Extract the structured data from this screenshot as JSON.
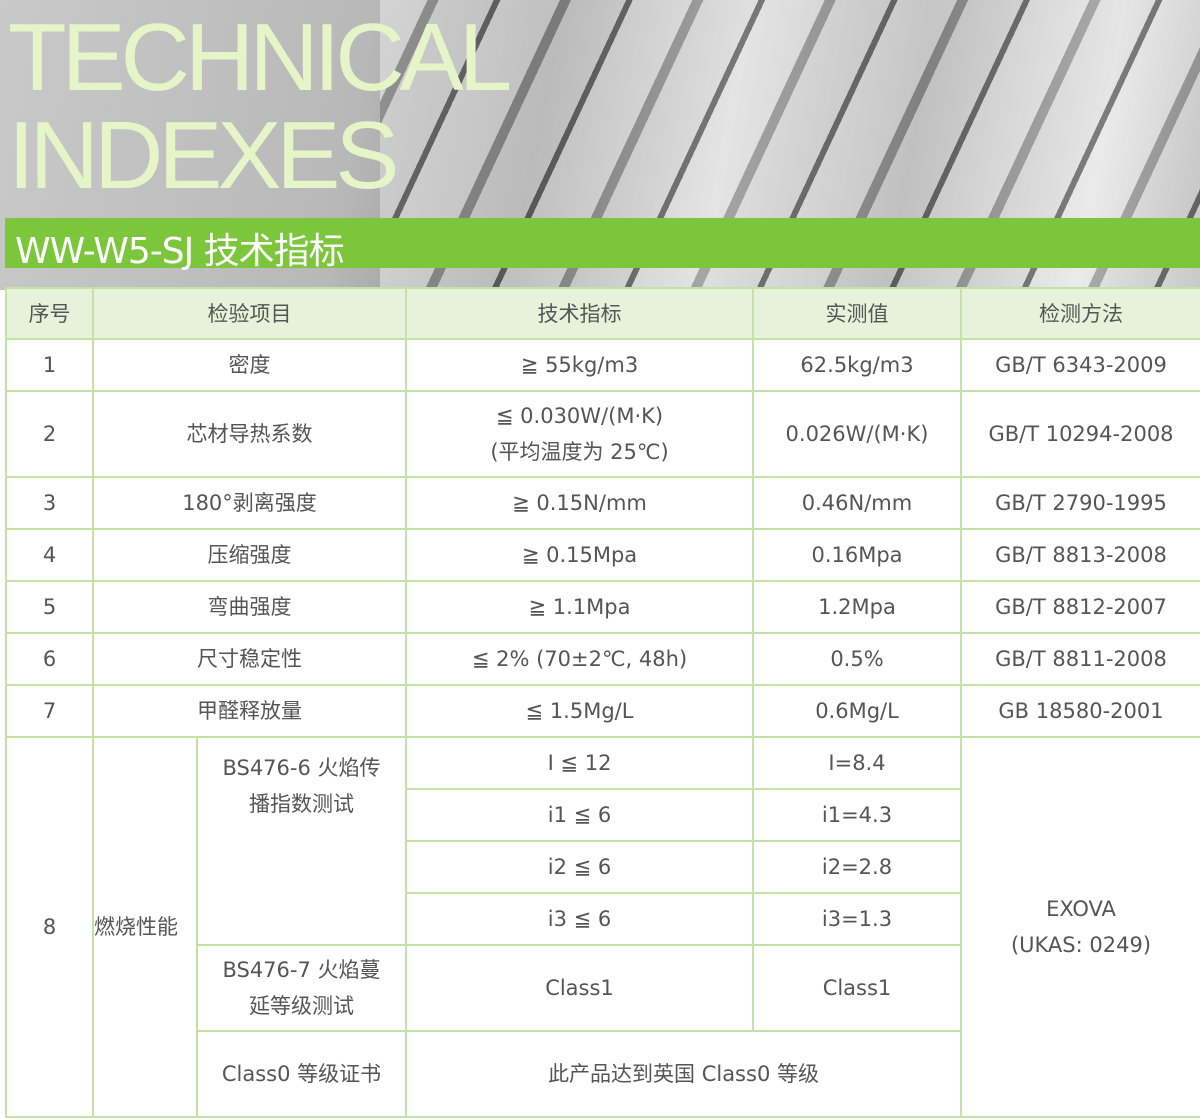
{
  "hero": {
    "title_line1": "TECHNICAL",
    "title_line2": "INDEXES",
    "subtitle": "WW-W5-SJ 技术指标",
    "accent": "#7cc63c"
  },
  "table": {
    "headers": [
      "序号",
      "检验项目",
      "技术指标",
      "实测值",
      "检测方法"
    ],
    "rows": [
      {
        "no": "1",
        "item": "密度",
        "spec": "≧ 55kg/m3",
        "value": "62.5kg/m3",
        "method": "GB/T 6343-2009"
      },
      {
        "no": "2",
        "item": "芯材导热系数",
        "spec": "≦ 0.030W/(M·K)",
        "spec2": "(平均温度为 25℃)",
        "value": "0.026W/(M·K)",
        "method": "GB/T 10294-2008"
      },
      {
        "no": "3",
        "item": "180°剥离强度",
        "spec": "≧ 0.15N/mm",
        "value": "0.46N/mm",
        "method": "GB/T 2790-1995"
      },
      {
        "no": "4",
        "item": "压缩强度",
        "spec": "≧ 0.15Mpa",
        "value": "0.16Mpa",
        "method": "GB/T 8813-2008"
      },
      {
        "no": "5",
        "item": "弯曲强度",
        "spec": "≧ 1.1Mpa",
        "value": "1.2Mpa",
        "method": "GB/T 8812-2007"
      },
      {
        "no": "6",
        "item": "尺寸稳定性",
        "spec": "≦ 2% (70±2℃, 48h)",
        "value": "0.5%",
        "method": "GB/T 8811-2008"
      },
      {
        "no": "7",
        "item": "甲醛释放量",
        "spec": "≦ 1.5Mg/L",
        "value": "0.6Mg/L",
        "method": "GB 18580-2001"
      }
    ],
    "row8": {
      "no": "8",
      "item": "燃烧性能",
      "test1": "BS476-6 火焰传播指数测试",
      "test1_specs": [
        "I ≦ 12",
        "i1 ≦ 6",
        "i2 ≦ 6",
        "i3 ≦ 6"
      ],
      "test1_values": [
        "I=8.4",
        "i1=4.3",
        "i2=2.8",
        "i3=1.3"
      ],
      "test2": "BS476-7 火焰蔓延等级测试",
      "test2_spec": "Class1",
      "test2_value": "Class1",
      "test3": "Class0 等级证书",
      "test3_result": "此产品达到英国 Class0 等级",
      "method": "EXOVA",
      "method2": "(UKAS: 0249)"
    }
  }
}
